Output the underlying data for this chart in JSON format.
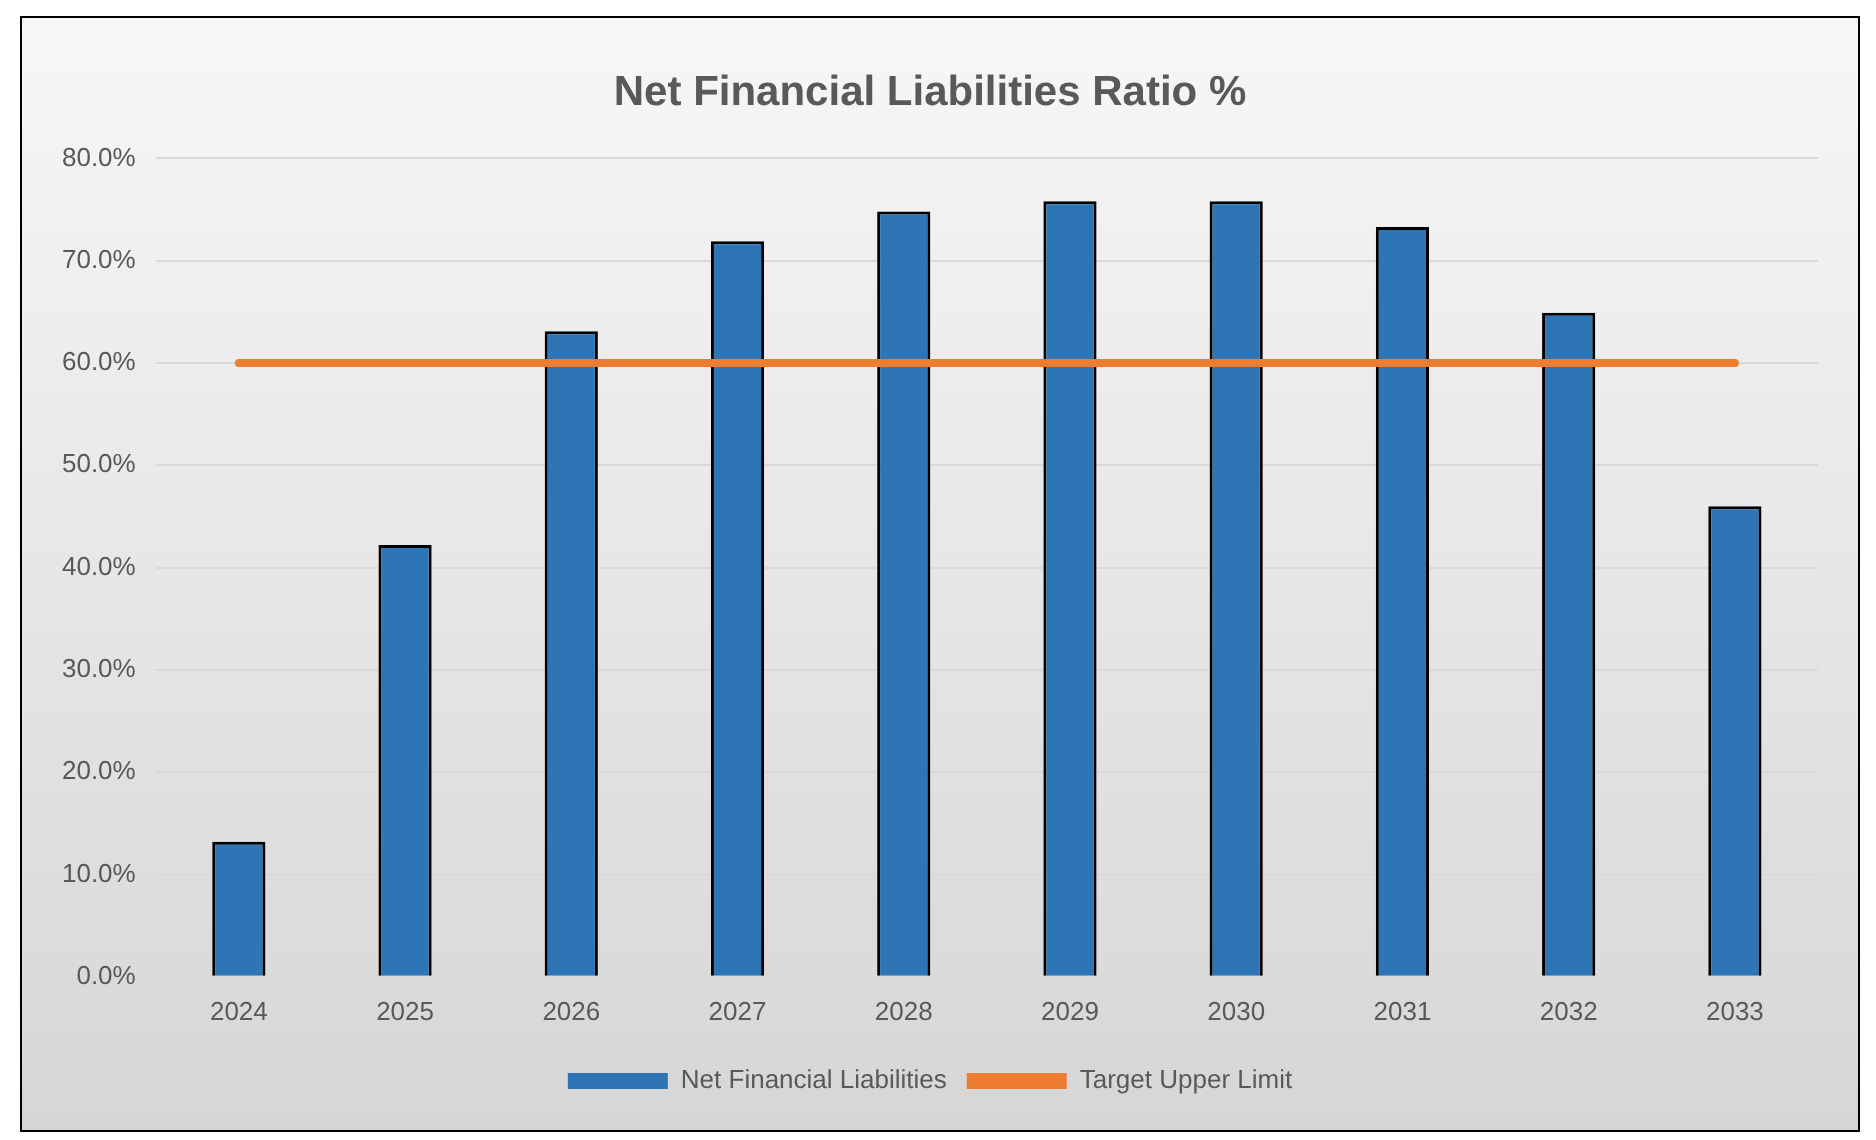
{
  "chart_data": {
    "type": "bar",
    "title": "Net Financial Liabilities Ratio %",
    "categories": [
      "2024",
      "2025",
      "2026",
      "2027",
      "2028",
      "2029",
      "2030",
      "2031",
      "2032",
      "2033"
    ],
    "series": [
      {
        "name": "Net Financial Liabilities",
        "color": "#2e75b6",
        "values": [
          13.2,
          42.2,
          63.1,
          71.9,
          74.8,
          75.8,
          75.8,
          73.3,
          64.9,
          46.0
        ]
      },
      {
        "name": "Target Upper Limit",
        "type": "line",
        "color": "#ed7d31",
        "values": [
          60,
          60,
          60,
          60,
          60,
          60,
          60,
          60,
          60,
          60
        ]
      }
    ],
    "ylim": [
      0,
      80
    ],
    "yticks": [
      {
        "value": 0,
        "label": "0.0%"
      },
      {
        "value": 10,
        "label": "10.0%"
      },
      {
        "value": 20,
        "label": "20.0%"
      },
      {
        "value": 30,
        "label": "30.0%"
      },
      {
        "value": 40,
        "label": "40.0%"
      },
      {
        "value": 50,
        "label": "50.0%"
      },
      {
        "value": 60,
        "label": "60.0%"
      },
      {
        "value": 70,
        "label": "70.0%"
      },
      {
        "value": 80,
        "label": "80.0%"
      }
    ],
    "grid": "y",
    "legend": "bottom",
    "marker": "none"
  }
}
